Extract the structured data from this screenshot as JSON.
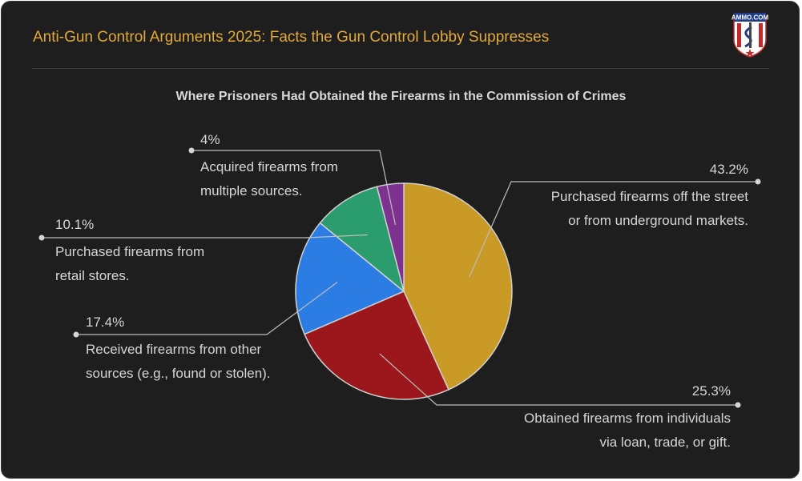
{
  "header": {
    "title": "Anti-Gun Control Arguments 2025: Facts the Gun Control Lobby Suppresses",
    "logo_text": "AMMO.COM"
  },
  "colors": {
    "background": "#1e1e1e",
    "title": "#e2a93b",
    "text": "#d6d6d6",
    "leader": "#bdbdbd"
  },
  "chart_data": {
    "type": "pie",
    "title": "Where Prisoners Had Obtained the Firearms in the Commission of Crimes",
    "start_angle_deg": 0,
    "direction": "clockwise",
    "slices": [
      {
        "label_lines": [
          "Purchased firearms off the street",
          "or from underground markets."
        ],
        "value": 43.2,
        "value_label": "43.2%",
        "color": "#c99a26"
      },
      {
        "label_lines": [
          "Obtained firearms from individuals",
          "via loan, trade, or gift."
        ],
        "value": 25.3,
        "value_label": "25.3%",
        "color": "#9b171c"
      },
      {
        "label_lines": [
          "Received firearms from other",
          "sources (e.g., found or stolen)."
        ],
        "value": 17.4,
        "value_label": "17.4%",
        "color": "#2b7de3"
      },
      {
        "label_lines": [
          "Purchased firearms from",
          "retail stores."
        ],
        "value": 10.1,
        "value_label": "10.1%",
        "color": "#2b9c6e"
      },
      {
        "label_lines": [
          "Acquired firearms from",
          "multiple sources."
        ],
        "value": 4.0,
        "value_label": "4%",
        "color": "#7d3290"
      }
    ]
  }
}
